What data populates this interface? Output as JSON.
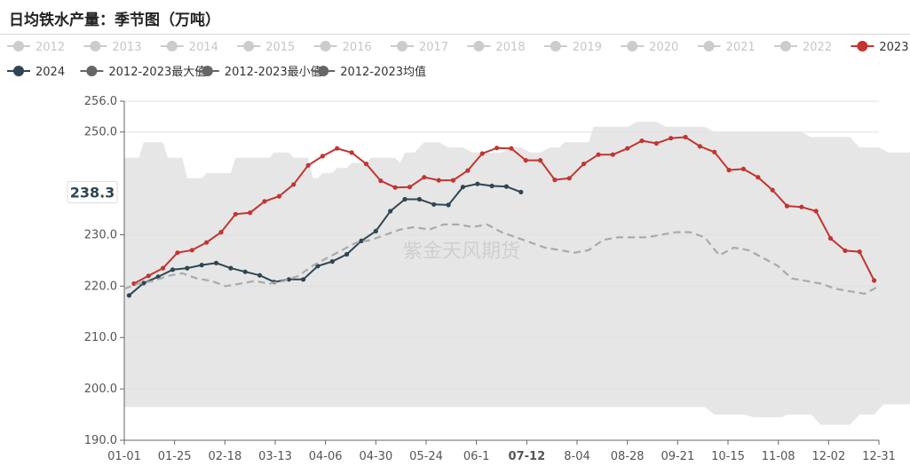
{
  "title": "日均铁水产量：季节图（万吨）",
  "watermark": "紫金天风期货",
  "chart_data": {
    "type": "line",
    "y_axis": {
      "ylim": [
        190,
        256
      ],
      "ticks": [
        190,
        200,
        210,
        220,
        230,
        250,
        256
      ],
      "tick_labels": [
        "190.0",
        "200.0",
        "210.0",
        "220.0",
        "230.0",
        "250.0",
        "256.0"
      ]
    },
    "x_axis": {
      "ticks": [
        "01-01",
        "01-25",
        "02-18",
        "03-13",
        "04-06",
        "04-30",
        "05-24",
        "06-1",
        "07-12",
        "8-04",
        "08-28",
        "09-21",
        "10-15",
        "11-08",
        "12-02",
        "12-31"
      ],
      "highlight": "07-12"
    },
    "current_label": {
      "text": "238.3",
      "value": 238.3
    },
    "legend": [
      {
        "name": "2012",
        "color": "#cccccc"
      },
      {
        "name": "2013",
        "color": "#cccccc"
      },
      {
        "name": "2014",
        "color": "#cccccc"
      },
      {
        "name": "2015",
        "color": "#cccccc"
      },
      {
        "name": "2016",
        "color": "#cccccc"
      },
      {
        "name": "2017",
        "color": "#cccccc"
      },
      {
        "name": "2018",
        "color": "#cccccc"
      },
      {
        "name": "2019",
        "color": "#cccccc"
      },
      {
        "name": "2020",
        "color": "#cccccc"
      },
      {
        "name": "2021",
        "color": "#cccccc"
      },
      {
        "name": "2022",
        "color": "#cccccc"
      },
      {
        "name": "2023",
        "color": "#c23531"
      },
      {
        "name": "2024",
        "color": "#2f4554"
      },
      {
        "name": "2012-2023最大值",
        "color": "#666666"
      },
      {
        "name": "2012-2023最小值",
        "color": "#666666"
      },
      {
        "name": "2012-2023均值",
        "color": "#666666"
      }
    ],
    "range_band": {
      "name": "2012-2023最大值/最小值",
      "color": "#e6e6e6",
      "max": [
        [
          0,
          245
        ],
        [
          3,
          245
        ],
        [
          4,
          248
        ],
        [
          8,
          248
        ],
        [
          9,
          245
        ],
        [
          12,
          245
        ],
        [
          13,
          241
        ],
        [
          16,
          241
        ],
        [
          17,
          242
        ],
        [
          22,
          242
        ],
        [
          23,
          245
        ],
        [
          30,
          245
        ],
        [
          31,
          246
        ],
        [
          34,
          246
        ],
        [
          35,
          245
        ],
        [
          38,
          245
        ],
        [
          39,
          241
        ],
        [
          40,
          241
        ],
        [
          41,
          242
        ],
        [
          43,
          242
        ],
        [
          44,
          243
        ],
        [
          46,
          243
        ],
        [
          47,
          244
        ],
        [
          50,
          244
        ],
        [
          51,
          245
        ],
        [
          56,
          245
        ],
        [
          57,
          244
        ],
        [
          58,
          246
        ],
        [
          60,
          246
        ],
        [
          62,
          248
        ],
        [
          65,
          248
        ],
        [
          67,
          247
        ],
        [
          70,
          247
        ],
        [
          72,
          246
        ],
        [
          78,
          246
        ],
        [
          80,
          247
        ],
        [
          82,
          247
        ],
        [
          84,
          246
        ],
        [
          86,
          246
        ],
        [
          88,
          247
        ],
        [
          90,
          247
        ],
        [
          91,
          248
        ],
        [
          96,
          248
        ],
        [
          97,
          251
        ],
        [
          104,
          251
        ],
        [
          106,
          252
        ],
        [
          110,
          252
        ],
        [
          112,
          251
        ],
        [
          120,
          251
        ],
        [
          122,
          250
        ],
        [
          130,
          250
        ],
        [
          133,
          250
        ],
        [
          140,
          250
        ],
        [
          142,
          249
        ],
        [
          150,
          249
        ],
        [
          152,
          247
        ],
        [
          156,
          247
        ],
        [
          158,
          246
        ],
        [
          166,
          246
        ],
        [
          168,
          245
        ],
        [
          170,
          245
        ],
        [
          171,
          246
        ],
        [
          175,
          246
        ],
        [
          177,
          243
        ],
        [
          181,
          243
        ],
        [
          182,
          244
        ],
        [
          184,
          244
        ]
      ],
      "min": [
        [
          0,
          196.5
        ],
        [
          120,
          196.5
        ],
        [
          122,
          195
        ],
        [
          128,
          195
        ],
        [
          130,
          194.5
        ],
        [
          136,
          194.5
        ],
        [
          137,
          195
        ],
        [
          142,
          195
        ],
        [
          144,
          193
        ],
        [
          150,
          193
        ],
        [
          152,
          195
        ],
        [
          155,
          195
        ],
        [
          157,
          197
        ],
        [
          166,
          197
        ],
        [
          168,
          200.5
        ],
        [
          172,
          200.5
        ],
        [
          174,
          199
        ],
        [
          184,
          199
        ]
      ]
    },
    "series": [
      {
        "name": "2023",
        "color": "#c23531",
        "points": [
          [
            2,
            220.5
          ],
          [
            5,
            222
          ],
          [
            8,
            223.5
          ],
          [
            11,
            226.5
          ],
          [
            14,
            227
          ],
          [
            17,
            228.5
          ],
          [
            20,
            230.5
          ],
          [
            23,
            234
          ],
          [
            26,
            234.3
          ],
          [
            29,
            236.5
          ],
          [
            32,
            237.5
          ],
          [
            35,
            239.8
          ],
          [
            38,
            243.5
          ],
          [
            41,
            245.3
          ],
          [
            44,
            246.8
          ],
          [
            47,
            246
          ],
          [
            50,
            243.8
          ],
          [
            53,
            240.5
          ],
          [
            56,
            239.2
          ],
          [
            59,
            239.3
          ],
          [
            62,
            241.2
          ],
          [
            65,
            240.6
          ],
          [
            68,
            240.6
          ],
          [
            71,
            242.5
          ],
          [
            74,
            245.8
          ],
          [
            77,
            246.9
          ],
          [
            80,
            246.8
          ],
          [
            83,
            244.5
          ],
          [
            86,
            244.5
          ],
          [
            89,
            240.7
          ],
          [
            92,
            241
          ],
          [
            95,
            243.8
          ],
          [
            98,
            245.6
          ],
          [
            101,
            245.6
          ],
          [
            104,
            246.8
          ],
          [
            107,
            248.3
          ],
          [
            110,
            247.8
          ],
          [
            113,
            248.8
          ],
          [
            116,
            249
          ],
          [
            119,
            247.2
          ],
          [
            122,
            246.1
          ],
          [
            125,
            242.6
          ],
          [
            128,
            242.8
          ],
          [
            131,
            241.2
          ],
          [
            134,
            238.7
          ],
          [
            137,
            235.6
          ],
          [
            140,
            235.4
          ],
          [
            143,
            234.6
          ],
          [
            146,
            229.3
          ],
          [
            149,
            226.9
          ],
          [
            152,
            226.7
          ],
          [
            155,
            221.1
          ]
        ]
      },
      {
        "name": "2024",
        "color": "#2f4554",
        "points": [
          [
            1,
            218.2
          ],
          [
            4,
            220.6
          ],
          [
            7,
            221.8
          ],
          [
            10,
            223.2
          ],
          [
            13,
            223.5
          ],
          [
            16,
            224.1
          ],
          [
            19,
            224.5
          ],
          [
            22,
            223.5
          ],
          [
            25,
            222.8
          ],
          [
            28,
            222.1
          ],
          [
            31,
            220.8
          ],
          [
            34,
            221.3
          ],
          [
            37,
            221.3
          ],
          [
            40,
            223.9
          ],
          [
            43,
            224.8
          ],
          [
            46,
            226.2
          ],
          [
            49,
            228.8
          ],
          [
            52,
            230.7
          ],
          [
            55,
            234.6
          ],
          [
            58,
            236.9
          ],
          [
            61,
            236.9
          ],
          [
            64,
            235.9
          ],
          [
            67,
            235.8
          ],
          [
            70,
            239.3
          ],
          [
            73,
            239.9
          ],
          [
            76,
            239.5
          ],
          [
            79,
            239.4
          ],
          [
            82,
            238.3
          ]
        ]
      },
      {
        "name": "2012-2023均值",
        "color": "#aaaaaa",
        "dash": true,
        "points": [
          [
            0,
            219.5
          ],
          [
            3,
            220.5
          ],
          [
            6,
            221
          ],
          [
            9,
            222
          ],
          [
            12,
            222.5
          ],
          [
            15,
            221.5
          ],
          [
            18,
            221
          ],
          [
            21,
            220
          ],
          [
            24,
            220.5
          ],
          [
            27,
            221
          ],
          [
            30,
            220.5
          ],
          [
            33,
            221
          ],
          [
            36,
            222
          ],
          [
            39,
            224
          ],
          [
            42,
            225.5
          ],
          [
            45,
            227
          ],
          [
            48,
            228.5
          ],
          [
            51,
            229
          ],
          [
            54,
            230
          ],
          [
            57,
            231
          ],
          [
            60,
            231.5
          ],
          [
            63,
            231
          ],
          [
            66,
            232
          ],
          [
            69,
            232
          ],
          [
            72,
            231.5
          ],
          [
            75,
            232
          ],
          [
            78,
            230.5
          ],
          [
            81,
            229.5
          ],
          [
            84,
            228.5
          ],
          [
            87,
            227.5
          ],
          [
            90,
            227
          ],
          [
            93,
            226.5
          ],
          [
            96,
            227
          ],
          [
            99,
            229
          ],
          [
            102,
            229.5
          ],
          [
            105,
            229.5
          ],
          [
            108,
            229.5
          ],
          [
            111,
            230
          ],
          [
            114,
            230.5
          ],
          [
            117,
            230.5
          ],
          [
            120,
            229.5
          ],
          [
            123,
            226
          ],
          [
            126,
            227.5
          ],
          [
            129,
            227
          ],
          [
            132,
            225.5
          ],
          [
            135,
            224
          ],
          [
            138,
            221.5
          ],
          [
            141,
            221
          ],
          [
            144,
            220.5
          ],
          [
            147,
            219.5
          ],
          [
            150,
            219
          ],
          [
            153,
            218.5
          ],
          [
            156,
            220
          ]
        ]
      }
    ]
  }
}
